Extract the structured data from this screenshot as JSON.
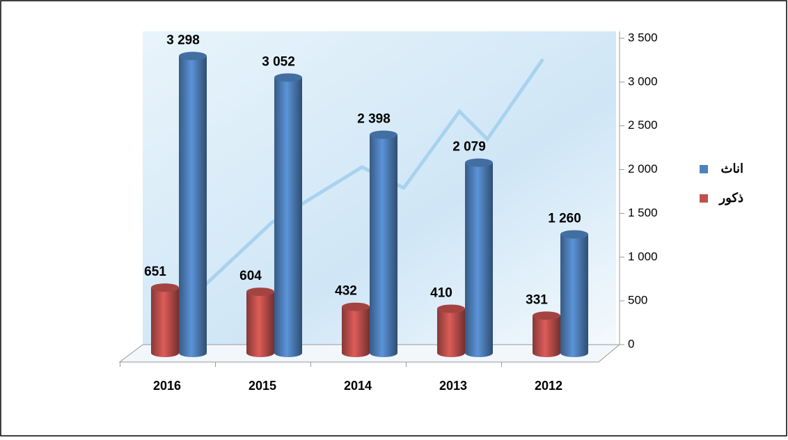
{
  "chart_data": {
    "type": "bar3d",
    "categories": [
      "2016",
      "2015",
      "2014",
      "2013",
      "2012"
    ],
    "series": [
      {
        "name": "ذكور",
        "color": "#c0504d",
        "values": [
          651,
          604,
          432,
          410,
          331
        ]
      },
      {
        "name": "اناث",
        "color": "#4f81bd",
        "values": [
          3298,
          3052,
          2398,
          2079,
          1260
        ],
        "value_labels": [
          "3 298",
          "3 052",
          "2 398",
          "2 079",
          "1 260"
        ]
      }
    ],
    "legend_order": [
      1,
      0
    ],
    "ylim": [
      0,
      3500
    ],
    "yticks": [
      0,
      500,
      {
        "value": 1000,
        "label": "1 000"
      },
      {
        "value": 1500,
        "label": "1 500"
      },
      {
        "value": 2000,
        "label": "2 000"
      },
      {
        "value": 2500,
        "label": "2 500"
      },
      {
        "value": 3000,
        "label": "3 000"
      },
      {
        "value": 3500,
        "label": "3 500"
      }
    ],
    "axis_side": "right"
  }
}
